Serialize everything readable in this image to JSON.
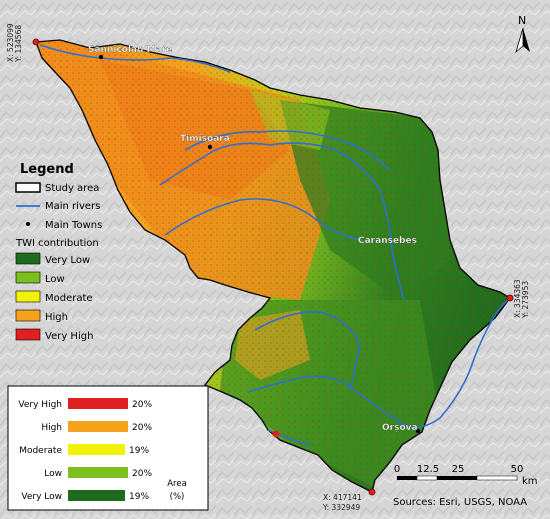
{
  "towns": [
    {
      "name": "Sânnicolau Mare"
    },
    {
      "name": "Timișoara"
    },
    {
      "name": "Caransebeș"
    },
    {
      "name": "Orșova"
    }
  ],
  "coordinates": {
    "nw": "X: 523099\nY: 134568",
    "nw_x": "X: 523099",
    "nw_y": "Y: 134568",
    "e_x": "X: 334363",
    "e_y": "Y: 273953",
    "s_x": "X: 417141",
    "s_y": "Y: 332949"
  },
  "north_arrow": {
    "label": "N"
  },
  "legend": {
    "title": "Legend",
    "items": [
      {
        "label": "Study area"
      },
      {
        "label": "Main rivers"
      },
      {
        "label": "Main Towns"
      }
    ],
    "twi_title": "TWI contribution",
    "classes": [
      {
        "label": "Very Low",
        "color": "#1e6b1e"
      },
      {
        "label": "Low",
        "color": "#7dbf1f"
      },
      {
        "label": "Moderate",
        "color": "#f2f20a"
      },
      {
        "label": "High",
        "color": "#f5a31e"
      },
      {
        "label": "Very High",
        "color": "#e02020"
      }
    ]
  },
  "chart_data": {
    "type": "bar",
    "categories": [
      "Very High",
      "High",
      "Moderate",
      "Low",
      "Very Low"
    ],
    "values": [
      20,
      20,
      19,
      20,
      19
    ],
    "unit": "%",
    "axis_label": "Area\n(%)",
    "axis_label_line1": "Area",
    "axis_label_line2": "(%)",
    "colors": [
      "#e02020",
      "#f5a31e",
      "#f2f20a",
      "#7dbf1f",
      "#1e6b1e"
    ]
  },
  "scale_bar": {
    "ticks": [
      "0",
      "12.5",
      "25",
      "50"
    ],
    "unit": "km"
  },
  "sources": "Sources: Esri, USGS, NOAA"
}
